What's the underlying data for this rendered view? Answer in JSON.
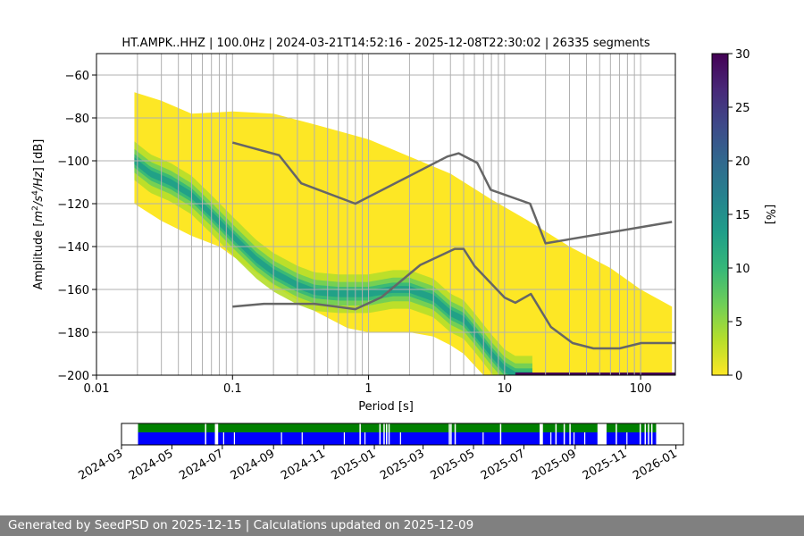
{
  "chart_data": {
    "type": "heatmap",
    "title": "HT.AMPK..HHZ | 100.0Hz | 2024-03-21T14:52:16 - 2025-12-08T22:30:02 | 26335 segments",
    "xlabel": "Period [s]",
    "ylabel_parts": [
      "Amplitude [",
      "m",
      "2",
      "/",
      "s",
      "4",
      "/Hz",
      "] [dB]"
    ],
    "x_scale": "log",
    "xlim": [
      0.01,
      180
    ],
    "ylim": [
      -200,
      -50
    ],
    "x_tick_labels": [
      {
        "value": 0.01,
        "label": "0.01"
      },
      {
        "value": 0.1,
        "label": "0.1"
      },
      {
        "value": 1,
        "label": "1"
      },
      {
        "value": 10,
        "label": "10"
      },
      {
        "value": 100,
        "label": "100"
      }
    ],
    "y_ticks": [
      -60,
      -80,
      -100,
      -120,
      -140,
      -160,
      -180,
      -200
    ],
    "y_tick_labels": [
      "−60",
      "−80",
      "−100",
      "−120",
      "−140",
      "−160",
      "−180",
      "−200"
    ],
    "grid": true,
    "colorbar": {
      "label": "[%]",
      "range": [
        0,
        30
      ],
      "ticks": [
        0,
        5,
        10,
        15,
        20,
        25,
        30
      ],
      "tick_labels": [
        "0",
        "5",
        "10",
        "15",
        "20",
        "25",
        "30"
      ],
      "colormap": [
        "#fde725",
        "#b5de2b",
        "#6ece58",
        "#35b779",
        "#1f9e89",
        "#26828e",
        "#31688e",
        "#3e4989",
        "#482878",
        "#440154"
      ]
    },
    "psd_mode": {
      "periods": [
        0.019,
        0.025,
        0.035,
        0.05,
        0.07,
        0.1,
        0.15,
        0.2,
        0.3,
        0.4,
        0.6,
        0.8,
        1.0,
        1.5,
        2,
        3,
        4,
        5,
        6,
        8,
        10,
        12,
        180
      ],
      "db": [
        -100,
        -106,
        -110,
        -116,
        -125,
        -135,
        -146,
        -152,
        -158,
        -161,
        -162,
        -162,
        -162,
        -160,
        -160,
        -164,
        -171,
        -174,
        -180,
        -190,
        -197,
        -200,
        -200
      ]
    },
    "psd_upper_envelope": {
      "periods": [
        0.019,
        0.03,
        0.05,
        0.1,
        0.2,
        0.4,
        1,
        2,
        4,
        8,
        15,
        30,
        60,
        100,
        170
      ],
      "db": [
        -68,
        -72,
        -78,
        -77,
        -78,
        -83,
        -90,
        -98,
        -106,
        -118,
        -128,
        -140,
        -150,
        -160,
        -168
      ]
    },
    "psd_lower_envelope": {
      "periods": [
        0.019,
        0.03,
        0.05,
        0.08,
        0.12,
        0.2,
        0.4,
        0.7,
        1,
        1.5,
        2,
        3,
        4,
        5,
        7,
        10,
        14,
        20,
        40,
        170
      ],
      "db": [
        -120,
        -128,
        -135,
        -140,
        -148,
        -158,
        -170,
        -178,
        -180,
        -180,
        -180,
        -182,
        -186,
        -190,
        -200,
        -200,
        -200,
        -200,
        -200,
        -200
      ]
    },
    "new_high_noise_model": {
      "periods": [
        0.1,
        0.22,
        0.32,
        0.8,
        3.8,
        4.6,
        6.3,
        7.9,
        15.4,
        20,
        170
      ],
      "db": [
        -91.5,
        -97.4,
        -110.5,
        -120,
        -98,
        -96.5,
        -101,
        -113.5,
        -120,
        -138.5,
        -128.5
      ]
    },
    "new_low_noise_model": {
      "periods": [
        0.1,
        0.17,
        0.4,
        0.8,
        1.24,
        2.4,
        4.3,
        5,
        6,
        10,
        12,
        15.6,
        21.9,
        31.6,
        45,
        70,
        101,
        154,
        180
      ],
      "db": [
        -168,
        -166.7,
        -166.7,
        -169.2,
        -163.7,
        -148.6,
        -141.1,
        -141.1,
        -149,
        -163.8,
        -166.2,
        -162.1,
        -177.5,
        -185,
        -187.5,
        -187.5,
        -185,
        -185,
        -185
      ]
    },
    "data_availability": {
      "date_ticks": [
        "2024-03",
        "2024-05",
        "2024-07",
        "2024-09",
        "2024-11",
        "2025-01",
        "2025-03",
        "2025-05",
        "2025-07",
        "2025-09",
        "2025-11",
        "2026-01"
      ],
      "range": [
        "2024-03-01",
        "2026-01-10"
      ],
      "upper_color": "#008000",
      "lower_color": "#0000ff",
      "covered_spans": [
        [
          "2024-03-21",
          "2024-06-22"
        ],
        [
          "2024-06-26",
          "2025-07-20"
        ],
        [
          "2025-07-24",
          "2025-09-28"
        ],
        [
          "2025-10-09",
          "2025-12-08"
        ]
      ],
      "small_gaps": [
        "2024-06-10",
        "2024-12-14",
        "2025-01-07",
        "2025-01-12",
        "2025-01-15",
        "2025-01-18",
        "2025-04-01",
        "2025-04-03",
        "2025-04-08",
        "2025-06-02",
        "2025-08-08",
        "2025-08-18",
        "2025-08-25",
        "2025-10-20",
        "2025-11-18",
        "2025-11-24",
        "2025-11-28",
        "2025-12-02"
      ],
      "lower_only_gaps": [
        "2024-07-02",
        "2024-07-15",
        "2024-09-10",
        "2024-10-05",
        "2024-11-25",
        "2024-12-20",
        "2025-02-01",
        "2025-05-12",
        "2025-08-02",
        "2025-08-30",
        "2025-09-12",
        "2025-11-02"
      ]
    }
  },
  "footer": {
    "text": "Generated by SeedPSD on 2025-12-15 | Calculations updated on 2025-12-09"
  }
}
